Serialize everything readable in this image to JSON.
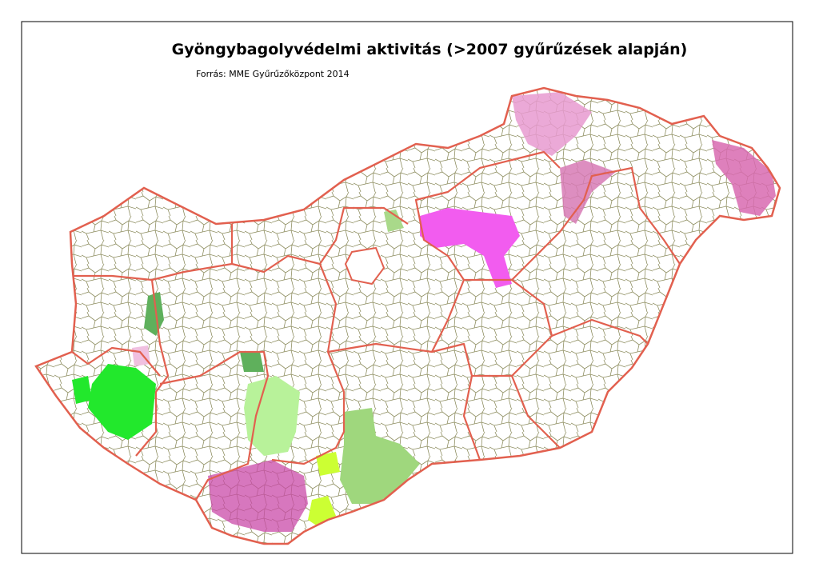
{
  "header": {
    "title": "Gyöngybagolyvédelmi aktivitás (>2007 gyűrűzések alapján)",
    "source": "Forrás: MME Gyűrűzőközpont 2014"
  }
}
